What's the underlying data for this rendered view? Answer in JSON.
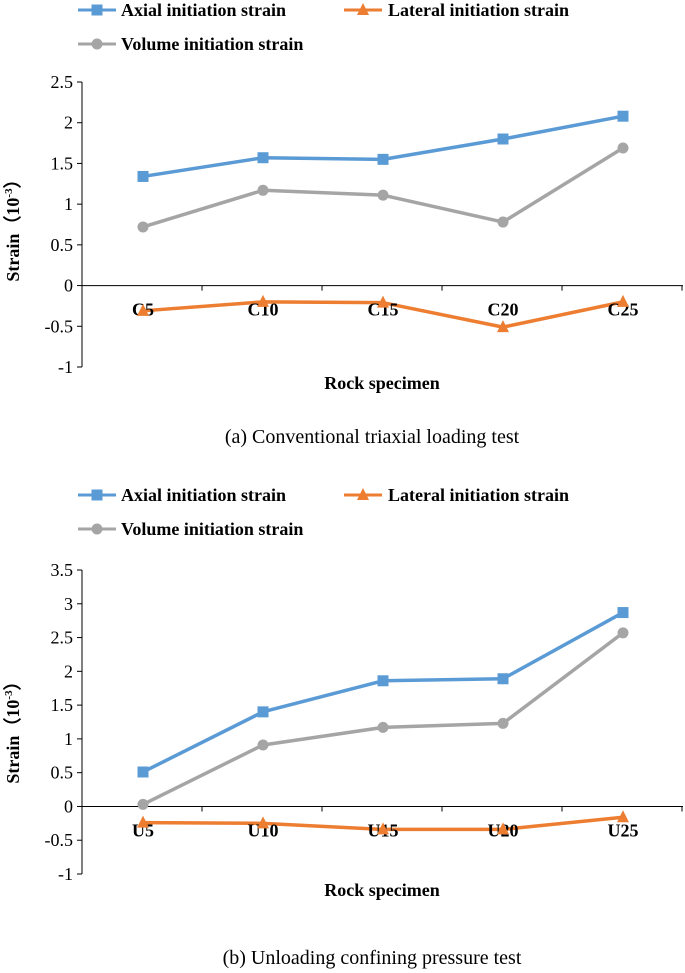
{
  "legend_labels": {
    "axial": "Axial initiation strain",
    "lateral": "Lateral initiation strain",
    "volume": "Volume initiation strain"
  },
  "colors": {
    "axial": "#5B9BD5",
    "lateral": "#ED7D31",
    "volume": "#A5A5A5",
    "axis": "#000000"
  },
  "panels": {
    "a": {
      "caption": "(a) Conventional triaxial loading test",
      "xlabel": "Rock specimen",
      "ylabel_main": "Strain（10",
      "ylabel_sup": "-3",
      "ylabel_end": "）"
    },
    "b": {
      "caption": "(b) Unloading confining pressure test",
      "xlabel": "Rock specimen",
      "ylabel_main": "Strain（10",
      "ylabel_sup": "-3",
      "ylabel_end": "）"
    }
  },
  "chart_data": [
    {
      "type": "line",
      "title": "(a) Conventional triaxial loading test",
      "xlabel": "Rock specimen",
      "ylabel": "Strain（10-3）",
      "categories": [
        "C5",
        "C10",
        "C15",
        "C20",
        "C25"
      ],
      "ylim": [
        -1,
        2.5
      ],
      "yticks": [
        -1,
        -0.5,
        0,
        0.5,
        1,
        1.5,
        2,
        2.5
      ],
      "ytick_labels": [
        "-1",
        "-0.5",
        "0",
        "0.5",
        "1",
        "1.5",
        "2",
        "2.5"
      ],
      "legend": "top",
      "series": [
        {
          "key": "axial",
          "name": "Axial initiation strain",
          "marker": "square",
          "values": [
            1.34,
            1.57,
            1.55,
            1.8,
            2.08
          ]
        },
        {
          "key": "lateral",
          "name": "Lateral initiation strain",
          "marker": "triangle",
          "values": [
            -0.31,
            -0.2,
            -0.21,
            -0.51,
            -0.2
          ]
        },
        {
          "key": "volume",
          "name": "Volume initiation strain",
          "marker": "circle",
          "values": [
            0.72,
            1.17,
            1.11,
            0.78,
            1.69
          ]
        }
      ]
    },
    {
      "type": "line",
      "title": "(b) Unloading confining pressure test",
      "xlabel": "Rock specimen",
      "ylabel": "Strain（10-3）",
      "categories": [
        "U5",
        "U10",
        "U15",
        "U20",
        "U25"
      ],
      "ylim": [
        -1,
        3.5
      ],
      "yticks": [
        -1,
        -0.5,
        0,
        0.5,
        1,
        1.5,
        2,
        2.5,
        3,
        3.5
      ],
      "ytick_labels": [
        "-1",
        "-0.5",
        "0",
        "0.5",
        "1",
        "1.5",
        "2",
        "2.5",
        "3",
        "3.5"
      ],
      "legend": "top",
      "series": [
        {
          "key": "axial",
          "name": "Axial initiation strain",
          "marker": "square",
          "values": [
            0.51,
            1.4,
            1.86,
            1.89,
            2.87
          ]
        },
        {
          "key": "lateral",
          "name": "Lateral initiation strain",
          "marker": "triangle",
          "values": [
            -0.24,
            -0.25,
            -0.34,
            -0.34,
            -0.16
          ]
        },
        {
          "key": "volume",
          "name": "Volume initiation strain",
          "marker": "circle",
          "values": [
            0.03,
            0.91,
            1.17,
            1.23,
            2.57
          ]
        }
      ]
    }
  ]
}
